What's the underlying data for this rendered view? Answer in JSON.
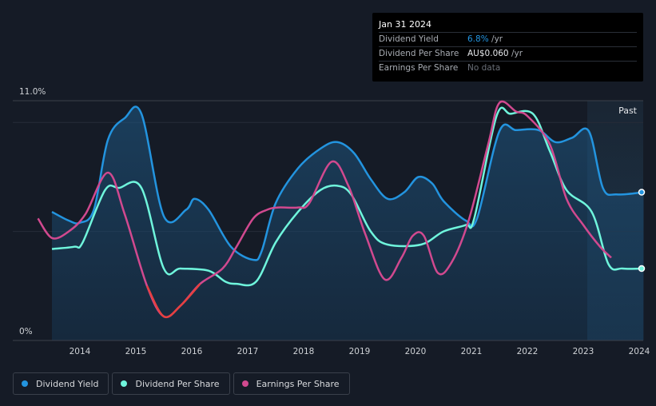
{
  "tooltip": {
    "date": "Jan 31 2024",
    "rows": [
      {
        "label": "Dividend Yield",
        "value": "6.8%",
        "unit": " /yr"
      },
      {
        "label": "Dividend Per Share",
        "value": "AU$0.060",
        "unit": " /yr"
      },
      {
        "label": "Earnings Per Share",
        "value": "No data",
        "unit": ""
      }
    ]
  },
  "legend": [
    {
      "label": "Dividend Yield",
      "color": "#2394df"
    },
    {
      "label": "Dividend Per Share",
      "color": "#6ff5dc"
    },
    {
      "label": "Earnings Per Share",
      "color": "#d1498f"
    }
  ],
  "colors": {
    "yield": "#2394df",
    "dps": "#6ff5dc",
    "eps": "#d1498f",
    "eps_negative": "#e64040",
    "background": "#151b26"
  },
  "chart_data": {
    "type": "line",
    "title": "",
    "ylim": [
      0,
      11
    ],
    "y_tick_labels": [
      "11.0%",
      "0%"
    ],
    "x_tick_labels": [
      "2014",
      "2015",
      "2016",
      "2017",
      "2018",
      "2019",
      "2020",
      "2021",
      "2022",
      "2023",
      "2024"
    ],
    "past_label": "Past",
    "series": [
      {
        "name": "Dividend Yield",
        "unit": "%",
        "points": [
          [
            2013.5,
            5.9
          ],
          [
            2013.8,
            5.5
          ],
          [
            2014.0,
            5.4
          ],
          [
            2014.25,
            6.0
          ],
          [
            2014.5,
            9.2
          ],
          [
            2014.8,
            10.2
          ],
          [
            2015.1,
            10.4
          ],
          [
            2015.5,
            5.7
          ],
          [
            2015.9,
            6.0
          ],
          [
            2016.05,
            6.5
          ],
          [
            2016.3,
            6.0
          ],
          [
            2016.7,
            4.3
          ],
          [
            2017.1,
            3.7
          ],
          [
            2017.25,
            4.1
          ],
          [
            2017.5,
            6.3
          ],
          [
            2017.9,
            7.9
          ],
          [
            2018.3,
            8.8
          ],
          [
            2018.6,
            9.1
          ],
          [
            2018.9,
            8.6
          ],
          [
            2019.2,
            7.4
          ],
          [
            2019.5,
            6.5
          ],
          [
            2019.8,
            6.8
          ],
          [
            2020.05,
            7.5
          ],
          [
            2020.3,
            7.2
          ],
          [
            2020.5,
            6.4
          ],
          [
            2020.9,
            5.5
          ],
          [
            2021.1,
            5.6
          ],
          [
            2021.5,
            9.6
          ],
          [
            2021.8,
            9.65
          ],
          [
            2022.2,
            9.65
          ],
          [
            2022.5,
            9.1
          ],
          [
            2022.8,
            9.3
          ],
          [
            2023.1,
            9.6
          ],
          [
            2023.35,
            7.0
          ],
          [
            2023.6,
            6.7
          ],
          [
            2024.08,
            6.8
          ]
        ]
      },
      {
        "name": "Dividend Per Share",
        "unit": "AU$",
        "points": [
          [
            2013.5,
            4.2
          ],
          [
            2013.9,
            4.3
          ],
          [
            2014.05,
            4.5
          ],
          [
            2014.45,
            6.9
          ],
          [
            2014.7,
            7.0
          ],
          [
            2015.1,
            7.0
          ],
          [
            2015.5,
            3.3
          ],
          [
            2015.8,
            3.3
          ],
          [
            2016.3,
            3.2
          ],
          [
            2016.6,
            2.7
          ],
          [
            2016.8,
            2.6
          ],
          [
            2017.15,
            2.7
          ],
          [
            2017.5,
            4.5
          ],
          [
            2017.9,
            5.9
          ],
          [
            2018.3,
            6.9
          ],
          [
            2018.6,
            7.1
          ],
          [
            2018.85,
            6.7
          ],
          [
            2019.2,
            5.0
          ],
          [
            2019.5,
            4.4
          ],
          [
            2020.1,
            4.4
          ],
          [
            2020.5,
            5.0
          ],
          [
            2020.9,
            5.3
          ],
          [
            2021.05,
            5.6
          ],
          [
            2021.45,
            10.3
          ],
          [
            2021.7,
            10.4
          ],
          [
            2022.1,
            10.4
          ],
          [
            2022.4,
            8.7
          ],
          [
            2022.7,
            6.9
          ],
          [
            2023.15,
            5.9
          ],
          [
            2023.45,
            3.5
          ],
          [
            2023.7,
            3.3
          ],
          [
            2024.08,
            3.3
          ]
        ]
      },
      {
        "name": "Earnings Per Share",
        "unit": "AU$",
        "points": [
          [
            2013.25,
            5.6
          ],
          [
            2013.5,
            4.7
          ],
          [
            2013.8,
            5.0
          ],
          [
            2014.1,
            5.8
          ],
          [
            2014.5,
            7.7
          ],
          [
            2014.8,
            5.8
          ],
          [
            2015.2,
            2.5
          ],
          [
            2015.5,
            1.1
          ],
          [
            2015.8,
            1.6
          ],
          [
            2016.15,
            2.6
          ],
          [
            2016.55,
            3.3
          ],
          [
            2016.8,
            4.3
          ],
          [
            2017.1,
            5.6
          ],
          [
            2017.35,
            6.0
          ],
          [
            2017.55,
            6.1
          ],
          [
            2017.9,
            6.1
          ],
          [
            2018.1,
            6.3
          ],
          [
            2018.5,
            8.2
          ],
          [
            2018.8,
            7.1
          ],
          [
            2019.1,
            4.9
          ],
          [
            2019.45,
            2.8
          ],
          [
            2019.75,
            3.8
          ],
          [
            2019.95,
            4.8
          ],
          [
            2020.15,
            4.8
          ],
          [
            2020.4,
            3.1
          ],
          [
            2020.65,
            3.6
          ],
          [
            2020.95,
            5.5
          ],
          [
            2021.3,
            9.0
          ],
          [
            2021.5,
            10.9
          ],
          [
            2021.8,
            10.5
          ],
          [
            2022.0,
            10.3
          ],
          [
            2022.4,
            9.0
          ],
          [
            2022.7,
            6.5
          ],
          [
            2023.0,
            5.3
          ],
          [
            2023.3,
            4.3
          ],
          [
            2023.5,
            3.8
          ]
        ]
      }
    ]
  }
}
